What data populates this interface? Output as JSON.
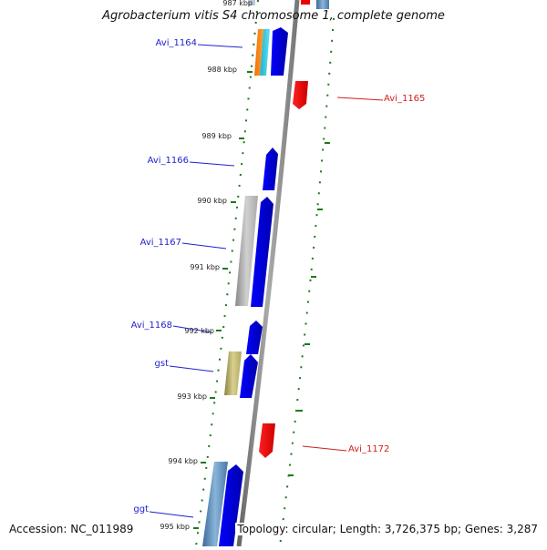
{
  "title": "Agrobacterium vitis S4 chromosome 1, complete genome",
  "accession": "Accession: NC_011989",
  "topology": "Topology: circular; Length: 3,726,375 bp; Genes: 3,287",
  "ticks": [
    {
      "label": "987 kbp"
    },
    {
      "label": "988 kbp"
    },
    {
      "label": "989 kbp"
    },
    {
      "label": "990 kbp"
    },
    {
      "label": "991 kbp"
    },
    {
      "label": "992 kbp"
    },
    {
      "label": "993 kbp"
    },
    {
      "label": "994 kbp"
    },
    {
      "label": "995 kbp"
    }
  ],
  "genes_left": [
    {
      "label": "Avi_1164"
    },
    {
      "label": "Avi_1166"
    },
    {
      "label": "Avi_1167"
    },
    {
      "label": "Avi_1168"
    },
    {
      "label": "gst"
    },
    {
      "label": "ggt"
    }
  ],
  "genes_right": [
    {
      "label": "Avi_1165"
    },
    {
      "label": "Avi_1172"
    }
  ],
  "colors": {
    "forward_gene": "#0000ee",
    "reverse_gene": "#ee0000",
    "backbone": "#888888",
    "tick_dots": "#1a7a1a",
    "blue_label": "#1f1fd0",
    "red_label": "#d01f1f"
  }
}
